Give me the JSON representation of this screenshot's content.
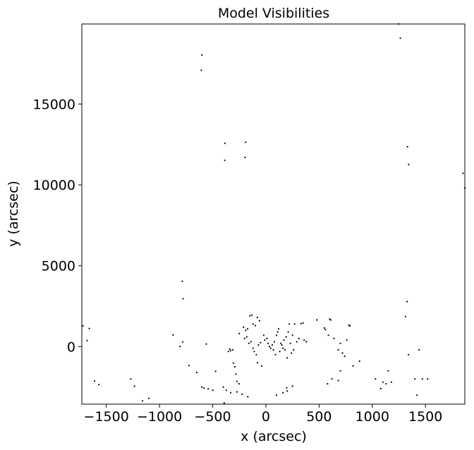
{
  "chart_data": {
    "type": "scatter",
    "title": "Model Visibilities",
    "xlabel": "x (arcsec)",
    "ylabel": "y (arcsec)",
    "xlim": [
      -1730,
      1870
    ],
    "ylim": [
      -3560,
      19950
    ],
    "xticks": [
      -1500,
      -1000,
      -500,
      0,
      500,
      1000,
      1500
    ],
    "xtick_labels": [
      "−1500",
      "−1000",
      "−500",
      "0",
      "500",
      "1000",
      "1500"
    ],
    "yticks": [
      0,
      5000,
      10000,
      15000
    ],
    "ytick_labels": [
      "0",
      "5000",
      "10000",
      "15000"
    ],
    "grid": false,
    "legend": "none",
    "marker_color": "#000000",
    "points": [
      [
        -601,
        18030
      ],
      [
        -606,
        17090
      ],
      [
        1246,
        19950
      ],
      [
        1264,
        19070
      ],
      [
        -384,
        12570
      ],
      [
        -387,
        11520
      ],
      [
        -189,
        12640
      ],
      [
        -195,
        11700
      ],
      [
        1331,
        12360
      ],
      [
        1342,
        11260
      ],
      [
        1853,
        10720
      ],
      [
        1870,
        9800
      ],
      [
        -785,
        4040
      ],
      [
        -778,
        2960
      ],
      [
        1328,
        2780
      ],
      [
        1312,
        1860
      ],
      [
        -1720,
        1280
      ],
      [
        -1660,
        1120
      ],
      [
        -1680,
        380
      ],
      [
        -872,
        720
      ],
      [
        -782,
        290
      ],
      [
        -807,
        10
      ],
      [
        -722,
        -1170
      ],
      [
        -650,
        -1600
      ],
      [
        -560,
        160
      ],
      [
        -472,
        -1530
      ],
      [
        -582,
        -2560
      ],
      [
        -542,
        -2620
      ],
      [
        -602,
        -2510
      ],
      [
        -499,
        -2690
      ],
      [
        -1610,
        -2130
      ],
      [
        -1570,
        -2350
      ],
      [
        -1270,
        -2000
      ],
      [
        -1235,
        -2450
      ],
      [
        -1160,
        -3360
      ],
      [
        -1100,
        -3200
      ],
      [
        -392,
        -3490
      ],
      [
        -352,
        -300
      ],
      [
        -340,
        -150
      ],
      [
        -332,
        -250
      ],
      [
        -312,
        -200
      ],
      [
        -305,
        -1020
      ],
      [
        -292,
        -1250
      ],
      [
        -282,
        -1700
      ],
      [
        -272,
        -2150
      ],
      [
        -252,
        -2300
      ],
      [
        -272,
        -2800
      ],
      [
        -224,
        -2950
      ],
      [
        -170,
        -3100
      ],
      [
        -400,
        -2500
      ],
      [
        -372,
        -2700
      ],
      [
        -331,
        -2850
      ],
      [
        -210,
        1200
      ],
      [
        -190,
        1000
      ],
      [
        -172,
        1100
      ],
      [
        -120,
        1400
      ],
      [
        -100,
        1300
      ],
      [
        -80,
        1800
      ],
      [
        -60,
        1600
      ],
      [
        -150,
        1900
      ],
      [
        -132,
        1950
      ],
      [
        -250,
        800
      ],
      [
        -201,
        500
      ],
      [
        -180,
        600
      ],
      [
        -160,
        200
      ],
      [
        -140,
        300
      ],
      [
        -120,
        -100
      ],
      [
        -110,
        -300
      ],
      [
        -90,
        -500
      ],
      [
        -70,
        100
      ],
      [
        -50,
        250
      ],
      [
        -20,
        700
      ],
      [
        -10,
        400
      ],
      [
        10,
        500
      ],
      [
        20,
        200
      ],
      [
        35,
        0
      ],
      [
        45,
        -100
      ],
      [
        60,
        100
      ],
      [
        70,
        -200
      ],
      [
        80,
        300
      ],
      [
        90,
        -500
      ],
      [
        100,
        700
      ],
      [
        110,
        900
      ],
      [
        120,
        1100
      ],
      [
        130,
        -300
      ],
      [
        140,
        200
      ],
      [
        150,
        100
      ],
      [
        160,
        -100
      ],
      [
        170,
        400
      ],
      [
        180,
        -200
      ],
      [
        190,
        600
      ],
      [
        200,
        -700
      ],
      [
        210,
        900
      ],
      [
        220,
        1400
      ],
      [
        230,
        200
      ],
      [
        240,
        -400
      ],
      [
        250,
        700
      ],
      [
        260,
        -200
      ],
      [
        270,
        1400
      ],
      [
        290,
        300
      ],
      [
        310,
        500
      ],
      [
        330,
        1420
      ],
      [
        350,
        1450
      ],
      [
        360,
        400
      ],
      [
        380,
        300
      ],
      [
        -80,
        -1000
      ],
      [
        -40,
        -1200
      ],
      [
        100,
        -3000
      ],
      [
        160,
        -2850
      ],
      [
        195,
        -2550
      ],
      [
        200,
        -2750
      ],
      [
        250,
        -2450
      ],
      [
        480,
        1650
      ],
      [
        550,
        1150
      ],
      [
        560,
        1050
      ],
      [
        588,
        700
      ],
      [
        600,
        1700
      ],
      [
        610,
        1650
      ],
      [
        640,
        500
      ],
      [
        680,
        -200
      ],
      [
        700,
        200
      ],
      [
        720,
        -400
      ],
      [
        740,
        -600
      ],
      [
        760,
        400
      ],
      [
        780,
        1320
      ],
      [
        790,
        1280
      ],
      [
        820,
        -1200
      ],
      [
        880,
        -900
      ],
      [
        700,
        -1500
      ],
      [
        680,
        -2100
      ],
      [
        620,
        -2000
      ],
      [
        580,
        -2300
      ],
      [
        1030,
        -2000
      ],
      [
        1080,
        -2600
      ],
      [
        1100,
        -2200
      ],
      [
        1130,
        -2300
      ],
      [
        1150,
        -1500
      ],
      [
        1180,
        -2200
      ],
      [
        1340,
        -500
      ],
      [
        1400,
        -2000
      ],
      [
        1440,
        -200
      ],
      [
        1470,
        -2000
      ],
      [
        1520,
        -2000
      ],
      [
        1420,
        -3000
      ]
    ]
  }
}
